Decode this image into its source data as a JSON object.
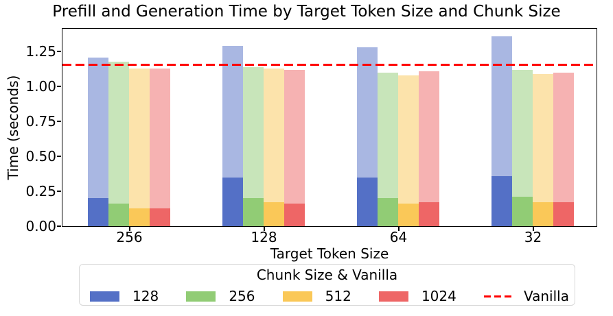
{
  "chart_data": {
    "type": "bar",
    "title": "Prefill and Generation Time by Target Token Size and Chunk Size",
    "xlabel": "Target Token Size",
    "ylabel": "Time (seconds)",
    "categories": [
      "256",
      "128",
      "64",
      "32"
    ],
    "ylim": [
      0,
      1.41
    ],
    "yticks": [
      "0.00",
      "0.25",
      "0.50",
      "0.75",
      "1.00",
      "1.25"
    ],
    "grid": false,
    "bar_style": "solid bottom segment = prefill time, translucent (50% alpha) full bar = total prefill + generation time",
    "series": [
      {
        "name": "128",
        "color": "#5470C6",
        "prefill_time": [
          0.2,
          0.35,
          0.35,
          0.36
        ],
        "total_time": [
          1.21,
          1.29,
          1.28,
          1.36
        ]
      },
      {
        "name": "256",
        "color": "#91CC75",
        "prefill_time": [
          0.16,
          0.2,
          0.2,
          0.21
        ],
        "total_time": [
          1.18,
          1.14,
          1.1,
          1.12
        ]
      },
      {
        "name": "512",
        "color": "#FAC858",
        "prefill_time": [
          0.13,
          0.17,
          0.16,
          0.17
        ],
        "total_time": [
          1.13,
          1.13,
          1.08,
          1.09
        ]
      },
      {
        "name": "1024",
        "color": "#EE6666",
        "prefill_time": [
          0.13,
          0.16,
          0.17,
          0.17
        ],
        "total_time": [
          1.13,
          1.12,
          1.11,
          1.1
        ]
      }
    ],
    "vanilla_line": {
      "label": "Vanilla",
      "value": 1.15,
      "color": "#FF0000",
      "style": "dashed"
    },
    "legend": {
      "title": "Chunk Size & Vanilla",
      "position": "below-chart",
      "entries": [
        "128",
        "256",
        "512",
        "1024",
        "Vanilla"
      ]
    }
  }
}
